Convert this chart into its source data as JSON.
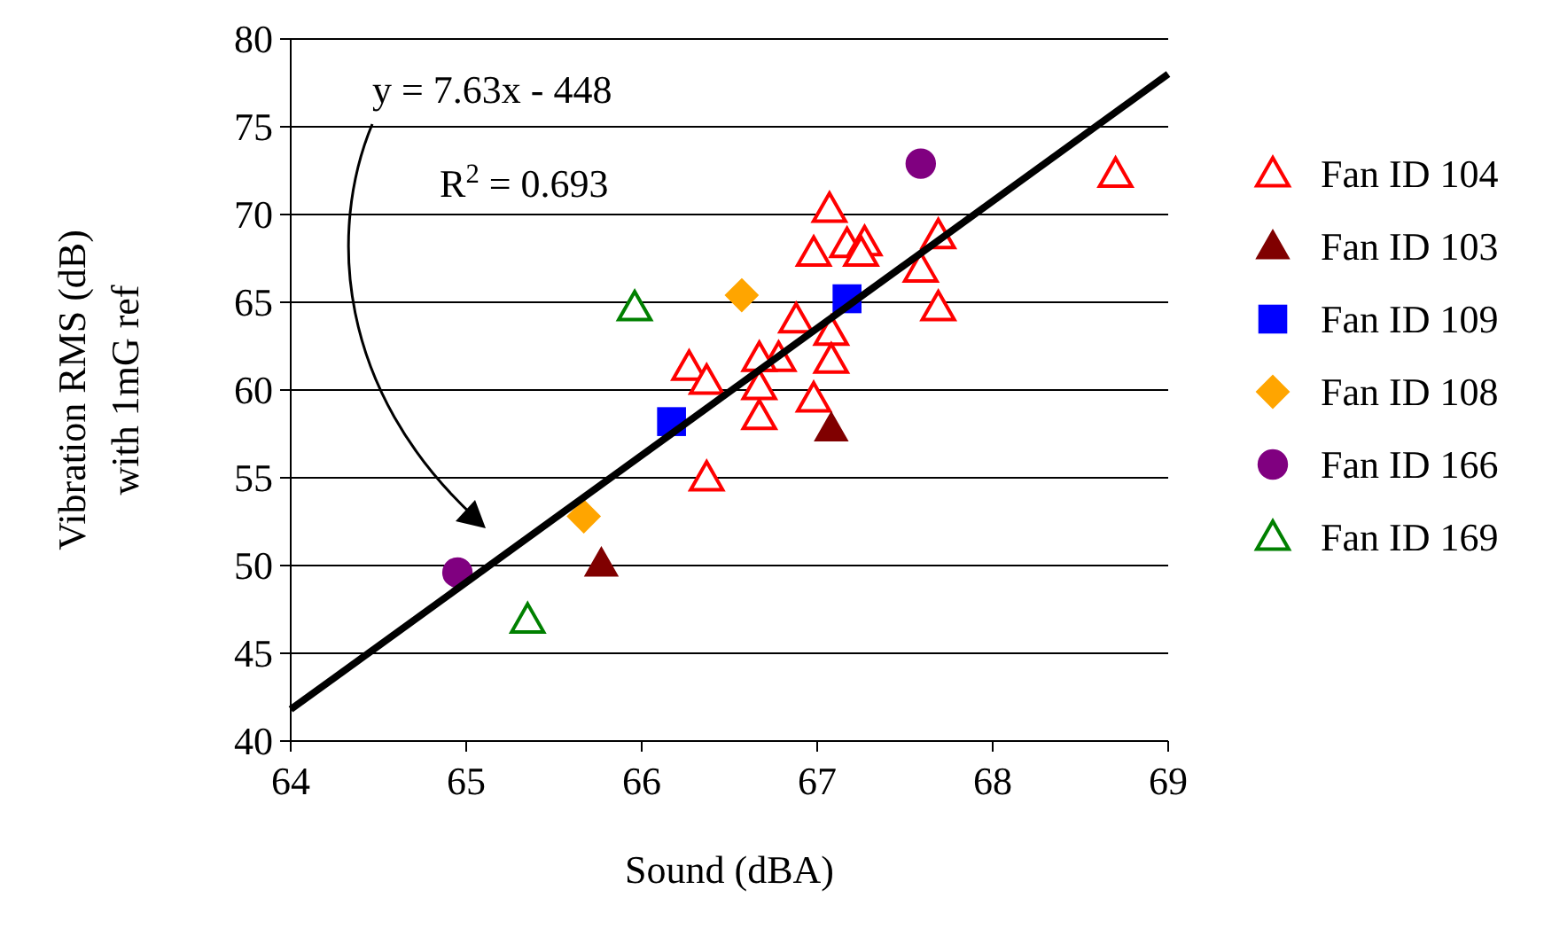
{
  "chart_data": {
    "type": "scatter",
    "xlabel": "Sound (dBA)",
    "ylabel": "Vibration RMS (dB)\nwith  1mG ref",
    "xlim": [
      64,
      69
    ],
    "xticks": [
      64,
      65,
      66,
      67,
      68,
      69
    ],
    "ylim": [
      40,
      80
    ],
    "yticks": [
      40,
      45,
      50,
      55,
      60,
      65,
      70,
      75,
      80
    ],
    "grid": "y",
    "legend": "right",
    "annotations": [
      "y = 7.63x - 448",
      "R$^{2}$ = 0.693"
    ],
    "series": [
      {
        "name": "Fan ID 104",
        "color": "#ff0000",
        "marker": "triangle-open",
        "x": [
          68.7,
          67.07,
          66.98,
          67.17,
          67.27,
          67.25,
          67.69,
          67.59,
          67.69,
          66.88,
          67.08,
          66.78,
          66.67,
          66.27,
          66.37,
          67.08,
          66.67,
          66.67,
          66.98,
          66.37
        ],
        "values": [
          72.3,
          70.3,
          67.8,
          68.3,
          68.4,
          67.8,
          68.8,
          66.9,
          64.7,
          64.0,
          63.3,
          61.8,
          61.8,
          61.3,
          60.5,
          61.7,
          60.2,
          58.5,
          59.5,
          55.0
        ]
      },
      {
        "name": "Fan ID 103",
        "color": "#800000",
        "marker": "triangle",
        "x": [
          67.08,
          65.77
        ],
        "values": [
          57.8,
          50.1
        ]
      },
      {
        "name": "Fan ID 109",
        "color": "#0000ff",
        "marker": "square",
        "x": [
          67.17,
          66.17
        ],
        "values": [
          65.2,
          58.2
        ]
      },
      {
        "name": "Fan ID 108",
        "color": "#ffa500",
        "marker": "diamond",
        "x": [
          66.57,
          65.67
        ],
        "values": [
          65.4,
          52.8
        ]
      },
      {
        "name": "Fan ID 166",
        "color": "#800080",
        "marker": "circle",
        "x": [
          67.59,
          64.95
        ],
        "values": [
          72.9,
          49.6
        ]
      },
      {
        "name": "Fan ID 169",
        "color": "#008000",
        "marker": "triangle-open",
        "x": [
          65.96,
          65.35
        ],
        "values": [
          64.7,
          46.9
        ]
      },
      {
        "type": "line",
        "color": "#000000",
        "marker": "none",
        "x": [
          64,
          69
        ],
        "values": [
          41.8,
          78
        ]
      }
    ]
  }
}
